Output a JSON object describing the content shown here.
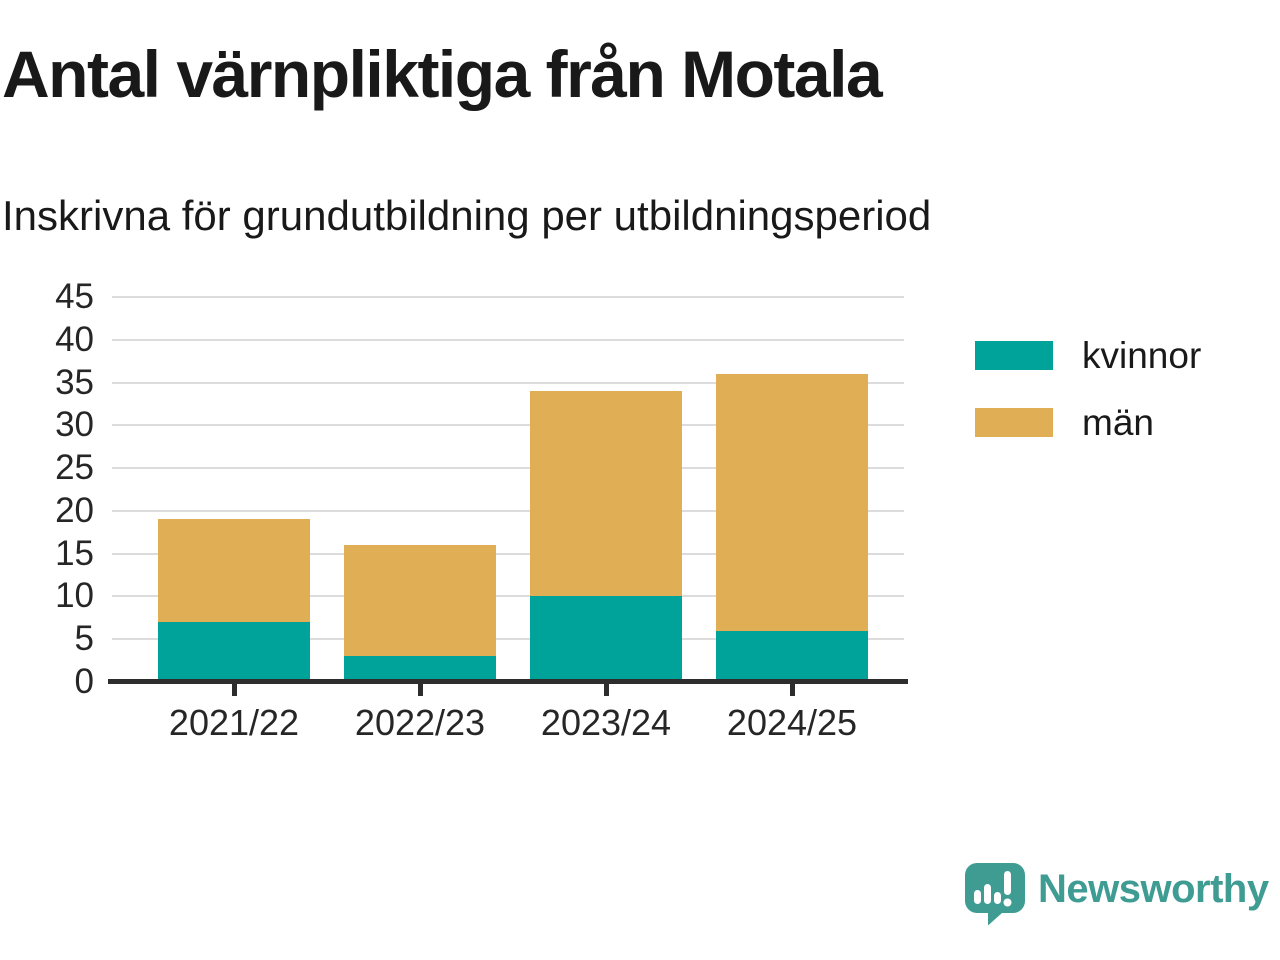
{
  "header": {
    "title": "Antal värnpliktiga från Motala",
    "subtitle": "Inskrivna för grundutbildning per utbildningsperiod"
  },
  "chart_data": {
    "type": "bar",
    "stacked": true,
    "title": "Antal värnpliktiga från Motala",
    "subtitle": "Inskrivna för grundutbildning per utbildningsperiod",
    "categories": [
      "2021/22",
      "2022/23",
      "2023/24",
      "2024/25"
    ],
    "series": [
      {
        "name": "kvinnor",
        "color": "#00A39A",
        "values": [
          7,
          3,
          10,
          6
        ]
      },
      {
        "name": "män",
        "color": "#DFAE55",
        "values": [
          12,
          13,
          24,
          30
        ]
      }
    ],
    "stack_totals": [
      19,
      16,
      34,
      36
    ],
    "ylim": [
      0,
      45
    ],
    "ytick_step": 5,
    "yticks": [
      0,
      5,
      10,
      15,
      20,
      25,
      30,
      35,
      40,
      45
    ],
    "grid": "horizontal",
    "legend_position": "right",
    "xlabel": "",
    "ylabel": ""
  },
  "legend": {
    "items": [
      {
        "label": "kvinnor",
        "color": "#00A39A"
      },
      {
        "label": "män",
        "color": "#DFAE55"
      }
    ]
  },
  "footer": {
    "brand": "Newsworthy",
    "brand_color": "#3F9C93",
    "logo_icon": "newsworthy-speech-bubble-bar-chart-icon"
  },
  "colors": {
    "background": "#FFFFFF",
    "text": "#191919",
    "axis": "#2D2D2D",
    "gridline": "#DCDCDC",
    "teal": "#00A39A",
    "gold": "#DFAE55",
    "brand_teal": "#3F9C93"
  }
}
